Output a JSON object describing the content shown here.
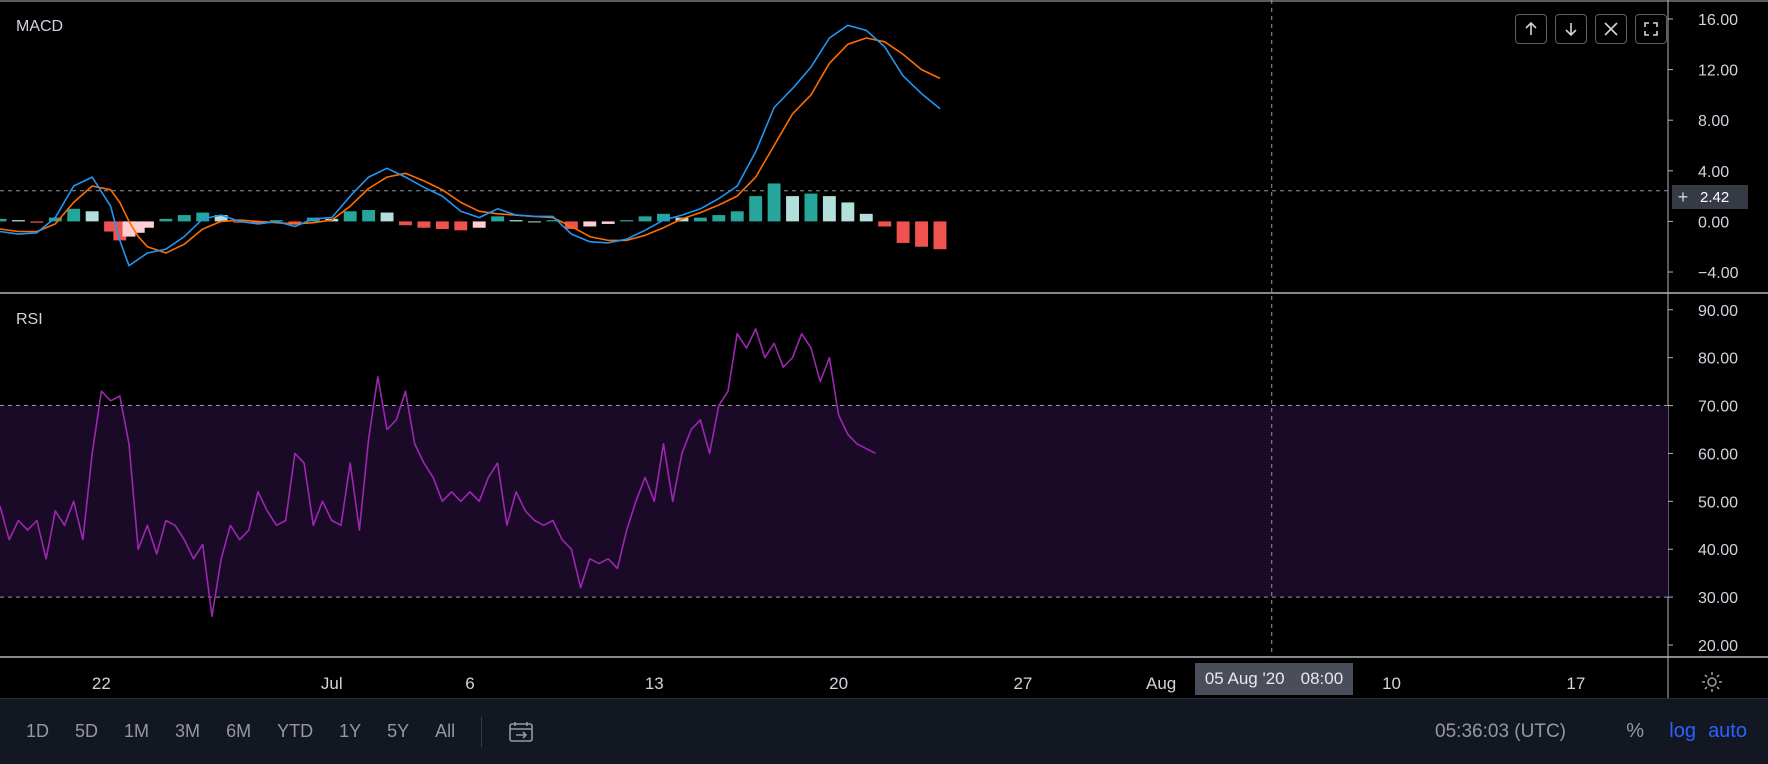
{
  "colors": {
    "background": "#000000",
    "macd_line": "#2196f3",
    "signal_line": "#ff6d00",
    "hist_pos_strong": "#26a69a",
    "hist_pos_weak": "#b2dfdb",
    "hist_neg_strong": "#ef5350",
    "hist_neg_weak": "#ffcdd2",
    "rsi_line": "#9c27b0",
    "rsi_band": "#1a0a28",
    "ui_accent": "#2962ff"
  },
  "chart_data": [
    {
      "type": "line",
      "title": "MACD",
      "ylim": [
        -5.5,
        17.5
      ],
      "y_ticks": [
        "16.00",
        "12.00",
        "8.00",
        "4.00",
        "0.00",
        "−4.00"
      ],
      "y_tick_values": [
        16,
        12,
        8,
        4,
        0,
        -4
      ],
      "x": [
        0,
        2,
        4,
        6,
        8,
        10,
        12,
        13,
        14,
        15,
        16,
        18,
        20,
        22,
        24,
        26,
        28,
        30,
        32,
        34,
        36,
        38,
        40,
        42,
        44,
        46,
        48,
        50,
        52,
        54,
        56,
        58,
        60,
        62,
        64,
        66,
        68,
        70,
        72,
        74,
        76,
        78,
        80,
        82,
        84,
        86,
        88,
        90,
        92,
        94,
        96,
        98,
        100,
        102,
        104,
        106,
        107,
        108,
        109,
        110,
        111,
        112
      ],
      "series": [
        {
          "key": "macd",
          "values": [
            -0.8,
            -1,
            -0.9,
            0.3,
            2.8,
            3.5,
            1.2,
            -1.5,
            -3.5,
            -3,
            -2.5,
            -2.2,
            -1.2,
            0.2,
            0.5,
            0,
            -0.2,
            0,
            -0.4,
            0.2,
            0.3,
            2,
            3.5,
            4.2,
            3.5,
            2.7,
            2,
            0.8,
            0.3,
            1,
            0.5,
            0.4,
            0.4,
            -1,
            -1.6,
            -1.7,
            -1.4,
            -0.7,
            0.1,
            0.5,
            1,
            1.8,
            2.8,
            5.5,
            9,
            10.5,
            12.2,
            14.5,
            15.5,
            15.1,
            13.8,
            11.5,
            10.1,
            8.9,
            null,
            null,
            null,
            null,
            null,
            null,
            null,
            null
          ]
        },
        {
          "key": "signal",
          "values": [
            -0.6,
            -0.8,
            -0.8,
            -0.2,
            1.5,
            2.8,
            2.5,
            1.5,
            0,
            -1.2,
            -2,
            -2.5,
            -1.8,
            -0.6,
            0,
            0.1,
            0,
            -0.1,
            -0.2,
            -0.1,
            0.1,
            1.2,
            2.6,
            3.5,
            3.8,
            3.2,
            2.5,
            1.5,
            0.8,
            0.6,
            0.5,
            0.4,
            0.3,
            -0.4,
            -1.2,
            -1.5,
            -1.5,
            -1.1,
            -0.5,
            0.2,
            0.7,
            1.3,
            2,
            3.5,
            6,
            8.5,
            10,
            12.5,
            14,
            14.5,
            14.2,
            13.2,
            12,
            11.3,
            null,
            null,
            null,
            null,
            null,
            null,
            null,
            null
          ]
        }
      ],
      "histogram": [
        0.2,
        0.1,
        -0.1,
        0.3,
        1.0,
        0.8,
        -0.8,
        -1.5,
        -1.2,
        -0.9,
        -0.5,
        0.2,
        0.5,
        0.7,
        0.5,
        -0.1,
        -0.2,
        0.1,
        -0.2,
        0.3,
        0.2,
        0.8,
        0.9,
        0.7,
        -0.3,
        -0.5,
        -0.6,
        -0.7,
        -0.5,
        0.4,
        0.1,
        0,
        0.1,
        -0.6,
        -0.4,
        -0.2,
        0.1,
        0.4,
        0.6,
        0.3,
        0.3,
        0.5,
        0.8,
        2,
        3,
        2,
        2.2,
        2,
        1.5,
        0.6,
        -0.4,
        -1.7,
        -2,
        -2.2,
        null,
        null,
        null,
        null,
        null,
        null,
        null,
        null
      ],
      "reference_line": 2.42,
      "current_value_label": "2.42"
    },
    {
      "type": "line",
      "title": "RSI",
      "ylim": [
        17.5,
        93.5
      ],
      "y_ticks": [
        "90.00",
        "80.00",
        "70.00",
        "60.00",
        "50.00",
        "40.00",
        "30.00",
        "20.00"
      ],
      "y_tick_values": [
        90,
        80,
        70,
        60,
        50,
        40,
        30,
        20
      ],
      "band": [
        30,
        70
      ],
      "x": [
        0,
        1,
        2,
        3,
        4,
        5,
        6,
        7,
        8,
        9,
        10,
        11,
        12,
        13,
        14,
        15,
        16,
        17,
        18,
        19,
        20,
        21,
        22,
        23,
        24,
        25,
        26,
        27,
        28,
        29,
        30,
        31,
        32,
        33,
        34,
        35,
        36,
        37,
        38,
        39,
        40,
        41,
        42,
        43,
        44,
        45,
        46,
        47,
        48,
        49,
        50,
        51,
        52,
        53,
        54,
        55,
        56,
        57,
        58,
        59,
        60,
        61,
        62,
        63,
        64,
        65,
        66,
        67,
        68,
        69,
        70,
        71,
        72,
        73,
        74,
        75,
        76,
        77,
        78,
        79,
        80,
        81,
        82,
        83,
        84,
        85,
        86,
        87,
        88,
        89,
        90,
        91,
        92,
        93,
        94,
        95,
        96,
        97,
        98,
        99,
        100,
        101,
        102,
        103,
        104,
        105,
        106,
        107,
        108,
        109,
        110,
        111,
        112
      ],
      "series": [
        {
          "key": "rsi",
          "values": [
            49,
            42,
            46,
            44,
            46,
            38,
            48,
            45,
            50,
            42,
            60,
            73,
            71,
            72,
            62,
            40,
            45,
            39,
            46,
            45,
            42,
            38,
            41,
            26,
            38,
            45,
            42,
            44,
            52,
            48,
            45,
            46,
            60,
            58,
            45,
            50,
            46,
            45,
            58,
            44,
            63,
            76,
            65,
            67,
            73,
            62,
            58,
            55,
            50,
            52,
            50,
            52,
            50,
            55,
            58,
            45,
            52,
            48,
            46,
            45,
            46,
            42,
            40,
            32,
            38,
            37,
            38,
            36,
            44,
            50,
            55,
            50,
            62,
            50,
            60,
            65,
            67,
            60,
            70,
            73,
            85,
            82,
            86,
            80,
            83,
            78,
            80,
            85,
            82,
            75,
            80,
            68,
            64,
            62,
            61,
            60,
            null,
            null,
            null,
            null,
            null,
            null,
            null,
            null,
            null,
            null,
            null,
            null,
            null,
            null,
            null,
            null,
            null
          ]
        }
      ]
    }
  ],
  "x_axis": {
    "ticks": [
      {
        "label": "22",
        "x": 11
      },
      {
        "label": "Jul",
        "x": 36
      },
      {
        "label": "6",
        "x": 51
      },
      {
        "label": "13",
        "x": 71
      },
      {
        "label": "20",
        "x": 91
      },
      {
        "label": "27",
        "x": 111
      },
      {
        "label": "Aug",
        "x": 126
      },
      {
        "label": "10",
        "x": 151
      },
      {
        "label": "17",
        "x": 171
      }
    ],
    "domain": [
      0,
      181
    ],
    "crosshair_x": 138,
    "crosshair_label_date": "05 Aug '20",
    "crosshair_label_time": "08:00"
  },
  "toolbar": {
    "ranges": [
      "1D",
      "5D",
      "1M",
      "3M",
      "6M",
      "YTD",
      "1Y",
      "5Y",
      "All"
    ],
    "time": "05:36:03 (UTC)",
    "percent": "%",
    "log": "log",
    "auto": "auto"
  },
  "icons": {
    "pane_buttons": [
      "arrow-up-icon",
      "arrow-down-icon",
      "close-icon",
      "maximize-icon"
    ],
    "settings": "gear-icon",
    "goto": "calendar-range-icon"
  }
}
